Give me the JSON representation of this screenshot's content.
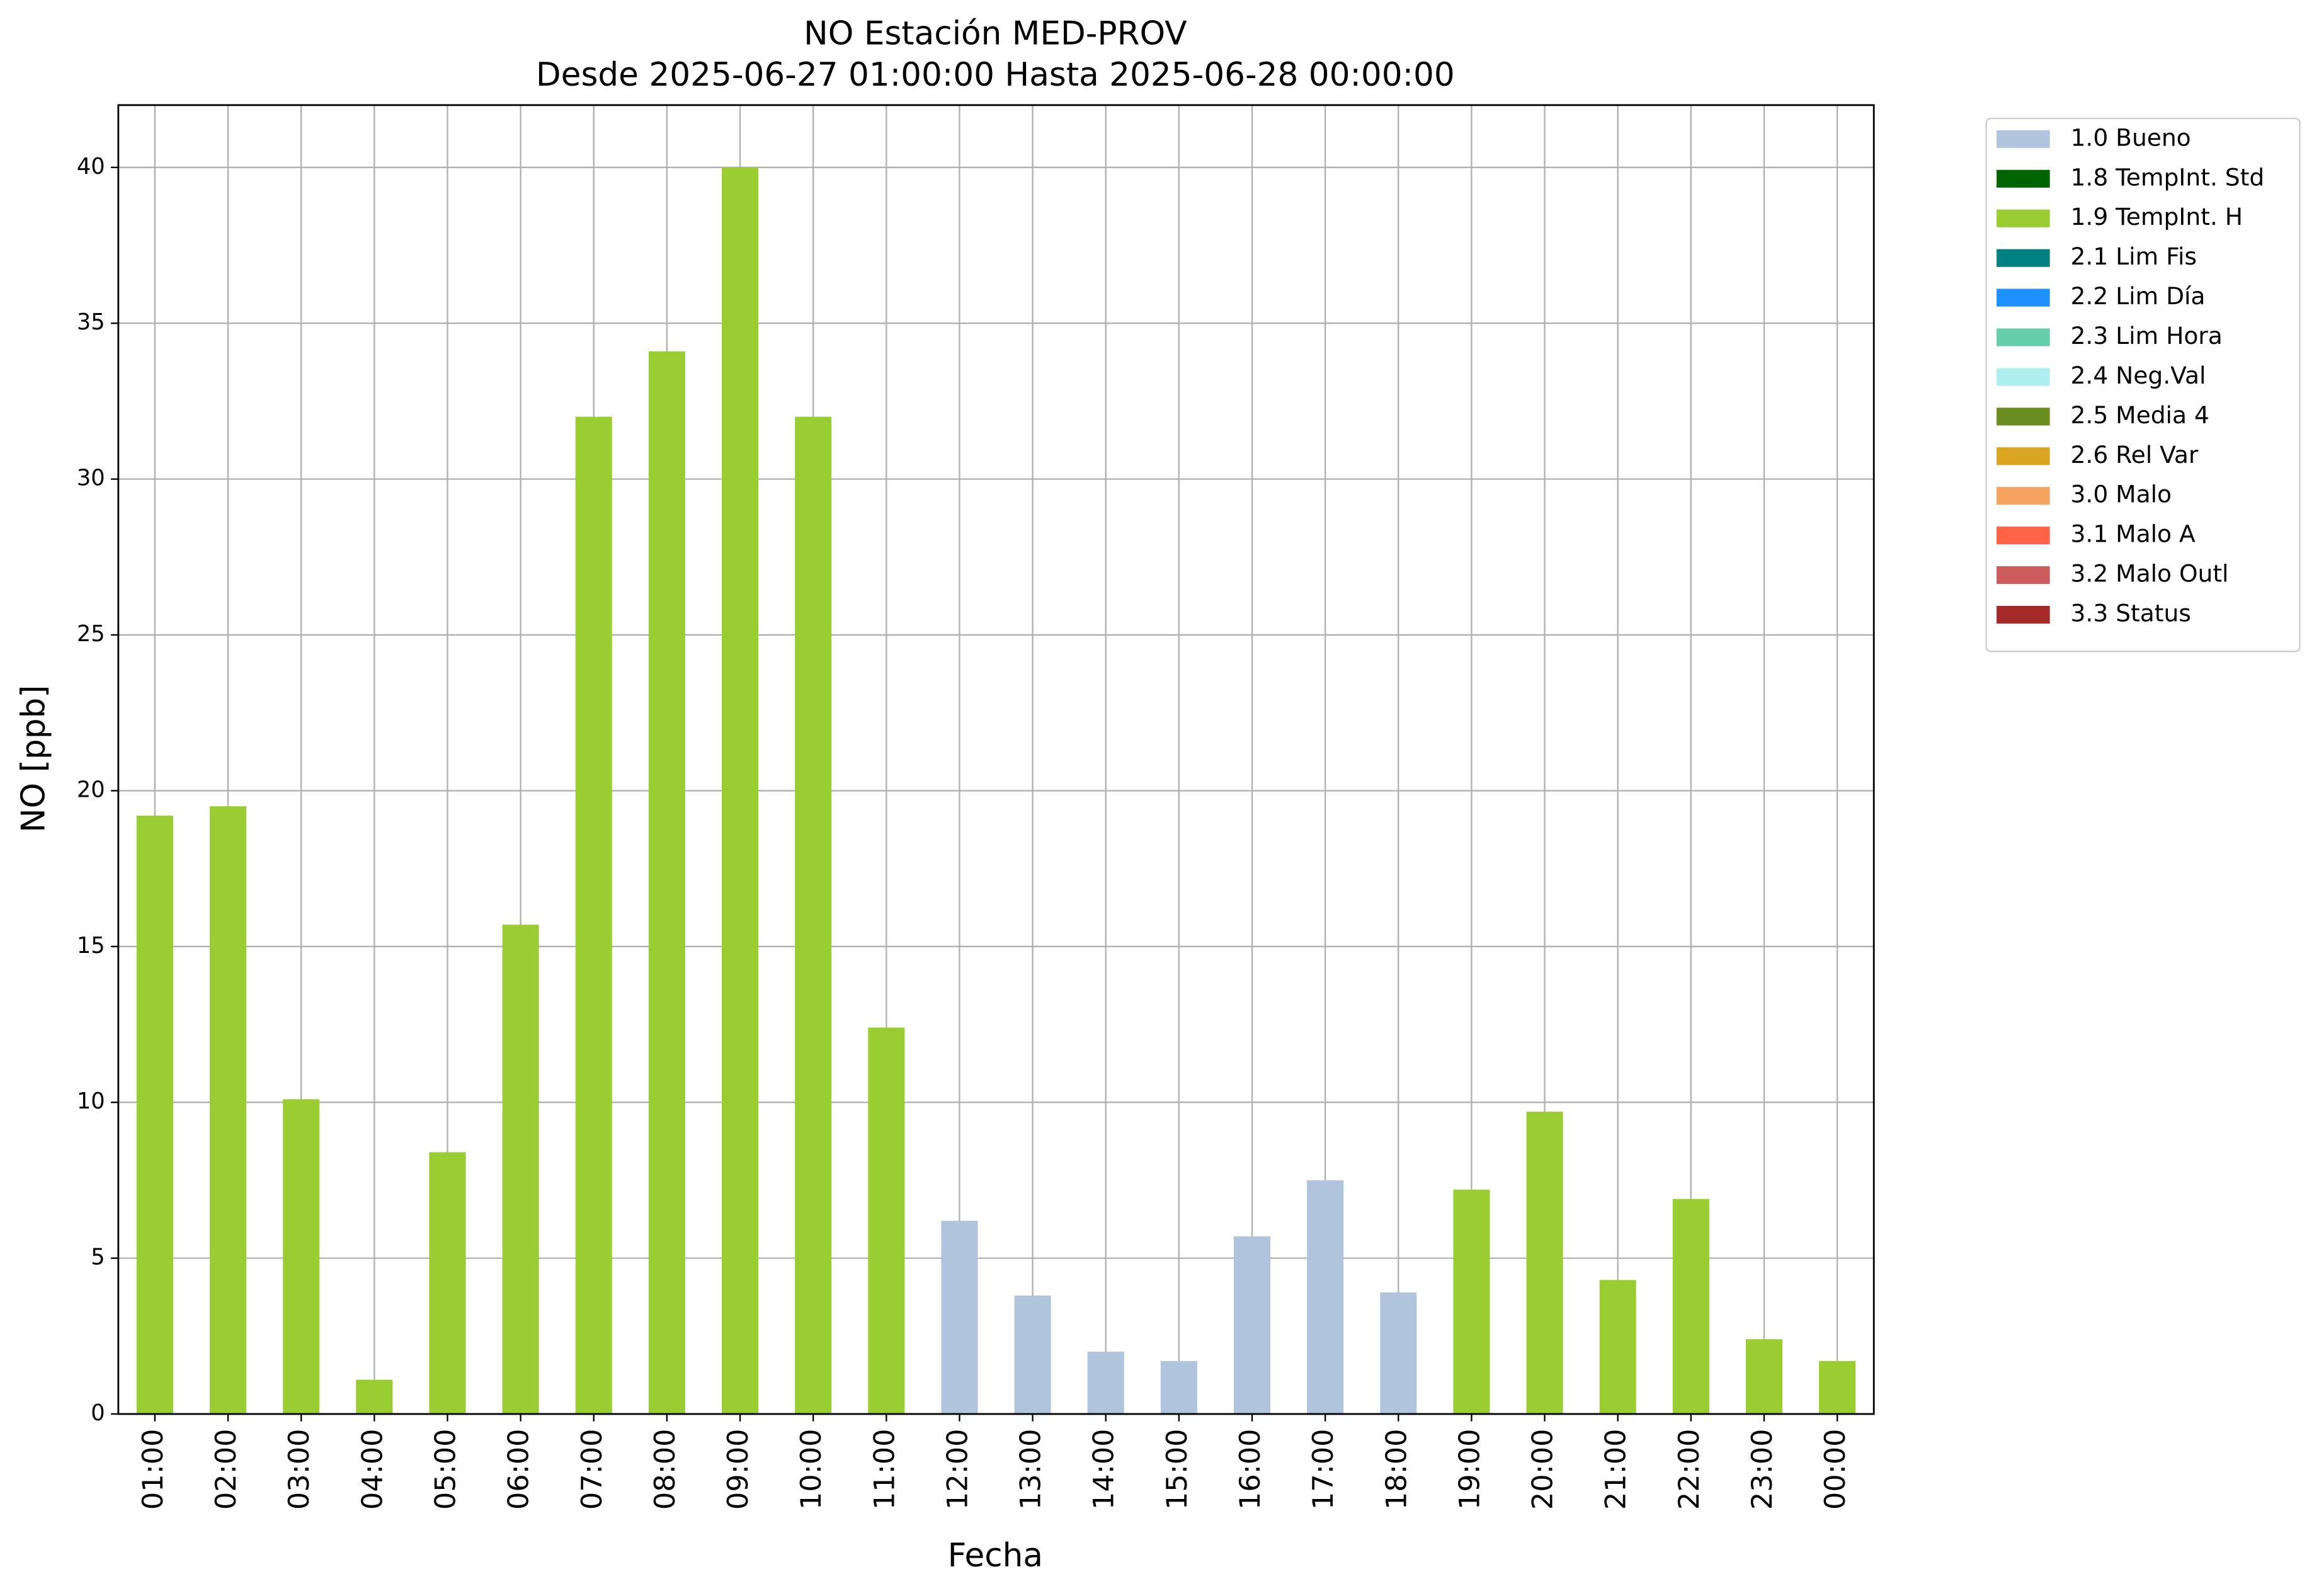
{
  "chart_data": {
    "type": "bar",
    "stacked": true,
    "title": "NO Estación MED-PROV",
    "subtitle": "Desde 2025-06-27 01:00:00 Hasta 2025-06-28 00:00:00",
    "x_label": "Fecha",
    "y_label": "NO [ppb]",
    "categories": [
      "01:00",
      "02:00",
      "03:00",
      "04:00",
      "05:00",
      "06:00",
      "07:00",
      "08:00",
      "09:00",
      "10:00",
      "11:00",
      "12:00",
      "13:00",
      "14:00",
      "15:00",
      "16:00",
      "17:00",
      "18:00",
      "19:00",
      "20:00",
      "21:00",
      "22:00",
      "23:00",
      "00:00"
    ],
    "series": [
      {
        "name": "1.0 Bueno",
        "color": "#b0c4de",
        "values": [
          null,
          null,
          null,
          null,
          null,
          null,
          null,
          null,
          null,
          null,
          null,
          6.2,
          3.8,
          2.0,
          1.7,
          5.7,
          7.5,
          3.9,
          null,
          null,
          null,
          null,
          null,
          null
        ]
      },
      {
        "name": "1.8 TempInt. Std",
        "color": "#006400",
        "values": [
          null,
          null,
          null,
          null,
          null,
          null,
          null,
          null,
          null,
          null,
          null,
          null,
          null,
          null,
          null,
          null,
          null,
          null,
          null,
          null,
          null,
          null,
          null,
          null
        ]
      },
      {
        "name": "1.9 TempInt. H",
        "color": "#9acd32",
        "values": [
          19.2,
          19.5,
          10.1,
          1.1,
          8.4,
          15.7,
          32,
          34.1,
          40,
          32,
          12.4,
          null,
          null,
          null,
          null,
          null,
          null,
          null,
          7.2,
          9.7,
          4.3,
          6.9,
          2.4,
          1.7
        ]
      },
      {
        "name": "2.1 Lim Fis",
        "color": "#008080",
        "values": [
          null,
          null,
          null,
          null,
          null,
          null,
          null,
          null,
          null,
          null,
          null,
          null,
          null,
          null,
          null,
          null,
          null,
          null,
          null,
          null,
          null,
          null,
          null,
          null
        ]
      },
      {
        "name": "2.2 Lim Día",
        "color": "#1e90ff",
        "values": [
          null,
          null,
          null,
          null,
          null,
          null,
          null,
          null,
          null,
          null,
          null,
          null,
          null,
          null,
          null,
          null,
          null,
          null,
          null,
          null,
          null,
          null,
          null,
          null
        ]
      },
      {
        "name": "2.3 Lim Hora",
        "color": "#66cdaa",
        "values": [
          null,
          null,
          null,
          null,
          null,
          null,
          null,
          null,
          null,
          null,
          null,
          null,
          null,
          null,
          null,
          null,
          null,
          null,
          null,
          null,
          null,
          null,
          null,
          null
        ]
      },
      {
        "name": "2.4 Neg.Val",
        "color": "#afeeee",
        "values": [
          null,
          null,
          null,
          null,
          null,
          null,
          null,
          null,
          null,
          null,
          null,
          null,
          null,
          null,
          null,
          null,
          null,
          null,
          null,
          null,
          null,
          null,
          null,
          null
        ]
      },
      {
        "name": "2.5 Media 4",
        "color": "#6b8e23",
        "values": [
          null,
          null,
          null,
          null,
          null,
          null,
          null,
          null,
          null,
          null,
          null,
          null,
          null,
          null,
          null,
          null,
          null,
          null,
          null,
          null,
          null,
          null,
          null,
          null
        ]
      },
      {
        "name": "2.6 Rel Var",
        "color": "#daa520",
        "values": [
          null,
          null,
          null,
          null,
          null,
          null,
          null,
          null,
          null,
          null,
          null,
          null,
          null,
          null,
          null,
          null,
          null,
          null,
          null,
          null,
          null,
          null,
          null,
          null
        ]
      },
      {
        "name": "3.0 Malo",
        "color": "#f4a460",
        "values": [
          null,
          null,
          null,
          null,
          null,
          null,
          null,
          null,
          null,
          null,
          null,
          null,
          null,
          null,
          null,
          null,
          null,
          null,
          null,
          null,
          null,
          null,
          null,
          null
        ]
      },
      {
        "name": "3.1 Malo A",
        "color": "#ff6347",
        "values": [
          null,
          null,
          null,
          null,
          null,
          null,
          null,
          null,
          null,
          null,
          null,
          null,
          null,
          null,
          null,
          null,
          null,
          null,
          null,
          null,
          null,
          null,
          null,
          null
        ]
      },
      {
        "name": "3.2 Malo Outl",
        "color": "#cd5c5c",
        "values": [
          null,
          null,
          null,
          null,
          null,
          null,
          null,
          null,
          null,
          null,
          null,
          null,
          null,
          null,
          null,
          null,
          null,
          null,
          null,
          null,
          null,
          null,
          null,
          null
        ]
      },
      {
        "name": "3.3 Status",
        "color": "#a52a2a",
        "values": [
          null,
          null,
          null,
          null,
          null,
          null,
          null,
          null,
          null,
          null,
          null,
          null,
          null,
          null,
          null,
          null,
          null,
          null,
          null,
          null,
          null,
          null,
          null,
          null
        ]
      }
    ],
    "ylim": [
      0,
      42
    ],
    "yticks": [
      0,
      5,
      10,
      15,
      20,
      25,
      30,
      35,
      40
    ],
    "grid": true,
    "legend": "outside-right"
  }
}
